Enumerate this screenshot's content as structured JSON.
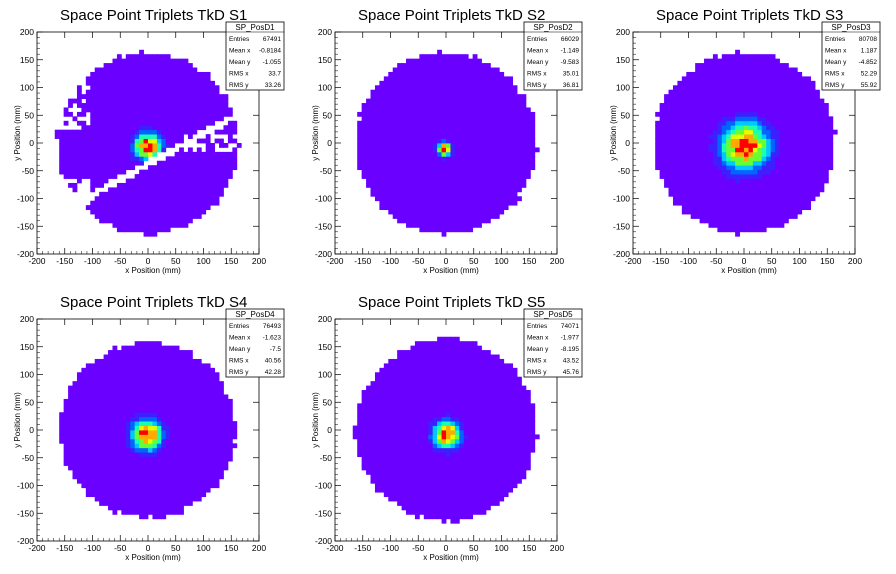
{
  "chart_data": [
    {
      "type": "heatmap",
      "title": "Space Point Triplets TkD S1",
      "xlabel": "x Position (mm)",
      "ylabel": "y Position (mm)",
      "xlim": [
        -200,
        200
      ],
      "ylim": [
        -200,
        200
      ],
      "xticks": [
        "-200",
        "-150",
        "-100",
        "-50",
        "0",
        "50",
        "100",
        "150",
        "200"
      ],
      "yticks": [
        "-200",
        "-150",
        "-100",
        "-50",
        "0",
        "50",
        "100",
        "150",
        "200"
      ],
      "stats": {
        "name": "SP_PosD1",
        "rows": [
          {
            "label": "Entries",
            "value": "67491"
          },
          {
            "label": "Mean x",
            "value": "-0.8184"
          },
          {
            "label": "Mean y",
            "value": "-1.055"
          },
          {
            "label": "RMS x",
            "value": "33.7"
          },
          {
            "label": "RMS y",
            "value": "33.26"
          }
        ]
      },
      "distribution": {
        "center_x": 0,
        "center_y": -5,
        "core_sigma": 17,
        "extent_radius": 160,
        "gap_band": true
      },
      "color_scale": [
        "#6a00ff",
        "#3d1fff",
        "#0066ff",
        "#00c8ff",
        "#1affb0",
        "#66ff33",
        "#e6ff00",
        "#ffaa00",
        "#ff0000"
      ]
    },
    {
      "type": "heatmap",
      "title": "Space Point Triplets TkD S2",
      "xlabel": "x Position (mm)",
      "ylabel": "y Position (mm)",
      "xlim": [
        -200,
        200
      ],
      "ylim": [
        -200,
        200
      ],
      "xticks": [
        "-200",
        "-150",
        "-100",
        "-50",
        "0",
        "50",
        "100",
        "150",
        "200"
      ],
      "yticks": [
        "-200",
        "-150",
        "-100",
        "-50",
        "0",
        "50",
        "100",
        "150",
        "200"
      ],
      "stats": {
        "name": "SP_PosD2",
        "rows": [
          {
            "label": "Entries",
            "value": "66029"
          },
          {
            "label": "Mean x",
            "value": "-1.149"
          },
          {
            "label": "Mean y",
            "value": "-9.583"
          },
          {
            "label": "RMS x",
            "value": "35.01"
          },
          {
            "label": "RMS y",
            "value": "36.81"
          }
        ]
      },
      "distribution": {
        "center_x": -3,
        "center_y": -10,
        "core_sigma": 9,
        "extent_radius": 160,
        "gap_band": false
      },
      "color_scale": [
        "#6a00ff",
        "#3d1fff",
        "#0066ff",
        "#00c8ff",
        "#1affb0",
        "#66ff33",
        "#e6ff00",
        "#ffaa00",
        "#ff0000"
      ]
    },
    {
      "type": "heatmap",
      "title": "Space Point Triplets TkD S3",
      "xlabel": "x Position (mm)",
      "ylabel": "y Position (mm)",
      "xlim": [
        -200,
        200
      ],
      "ylim": [
        -200,
        200
      ],
      "xticks": [
        "-200",
        "-150",
        "-100",
        "-50",
        "0",
        "50",
        "100",
        "150",
        "200"
      ],
      "yticks": [
        "-200",
        "-150",
        "-100",
        "-50",
        "0",
        "50",
        "100",
        "150",
        "200"
      ],
      "stats": {
        "name": "SP_PosD3",
        "rows": [
          {
            "label": "Entries",
            "value": "80708"
          },
          {
            "label": "Mean x",
            "value": "1.187"
          },
          {
            "label": "Mean y",
            "value": "-4.852"
          },
          {
            "label": "RMS x",
            "value": "52.29"
          },
          {
            "label": "RMS y",
            "value": "55.92"
          }
        ]
      },
      "distribution": {
        "center_x": 2,
        "center_y": -5,
        "core_sigma": 30,
        "extent_radius": 160,
        "gap_band": false
      },
      "color_scale": [
        "#6a00ff",
        "#3d1fff",
        "#0066ff",
        "#00c8ff",
        "#1affb0",
        "#66ff33",
        "#e6ff00",
        "#ffaa00",
        "#ff0000"
      ]
    },
    {
      "type": "heatmap",
      "title": "Space Point Triplets TkD S4",
      "xlabel": "x Position (mm)",
      "ylabel": "y Position (mm)",
      "xlim": [
        -200,
        200
      ],
      "ylim": [
        -200,
        200
      ],
      "xticks": [
        "-200",
        "-150",
        "-100",
        "-50",
        "0",
        "50",
        "100",
        "150",
        "200"
      ],
      "yticks": [
        "-200",
        "-150",
        "-100",
        "-50",
        "0",
        "50",
        "100",
        "150",
        "200"
      ],
      "stats": {
        "name": "SP_PosD4",
        "rows": [
          {
            "label": "Entries",
            "value": "76493"
          },
          {
            "label": "Mean x",
            "value": "-1.623"
          },
          {
            "label": "Mean y",
            "value": "-7.5"
          },
          {
            "label": "RMS x",
            "value": "40.56"
          },
          {
            "label": "RMS y",
            "value": "42.28"
          }
        ]
      },
      "distribution": {
        "center_x": -2,
        "center_y": -8,
        "core_sigma": 19,
        "extent_radius": 155,
        "gap_band": false
      },
      "color_scale": [
        "#6a00ff",
        "#3d1fff",
        "#0066ff",
        "#00c8ff",
        "#1affb0",
        "#66ff33",
        "#e6ff00",
        "#ffaa00",
        "#ff0000"
      ]
    },
    {
      "type": "heatmap",
      "title": "Space Point Triplets TkD S5",
      "xlabel": "x Position (mm)",
      "ylabel": "y Position (mm)",
      "xlim": [
        -200,
        200
      ],
      "ylim": [
        -200,
        200
      ],
      "xticks": [
        "-200",
        "-150",
        "-100",
        "-50",
        "0",
        "50",
        "100",
        "150",
        "200"
      ],
      "yticks": [
        "-200",
        "-150",
        "-100",
        "-50",
        "0",
        "50",
        "100",
        "150",
        "200"
      ],
      "stats": {
        "name": "SP_PosD5",
        "rows": [
          {
            "label": "Entries",
            "value": "74071"
          },
          {
            "label": "Mean x",
            "value": "-1.977"
          },
          {
            "label": "Mean y",
            "value": "-8.195"
          },
          {
            "label": "RMS x",
            "value": "43.52"
          },
          {
            "label": "RMS y",
            "value": "45.76"
          }
        ]
      },
      "distribution": {
        "center_x": 0,
        "center_y": -8,
        "core_sigma": 17,
        "extent_radius": 160,
        "gap_band": false
      },
      "color_scale": [
        "#6a00ff",
        "#3d1fff",
        "#0066ff",
        "#00c8ff",
        "#1affb0",
        "#66ff33",
        "#e6ff00",
        "#ffaa00",
        "#ff0000"
      ]
    }
  ]
}
